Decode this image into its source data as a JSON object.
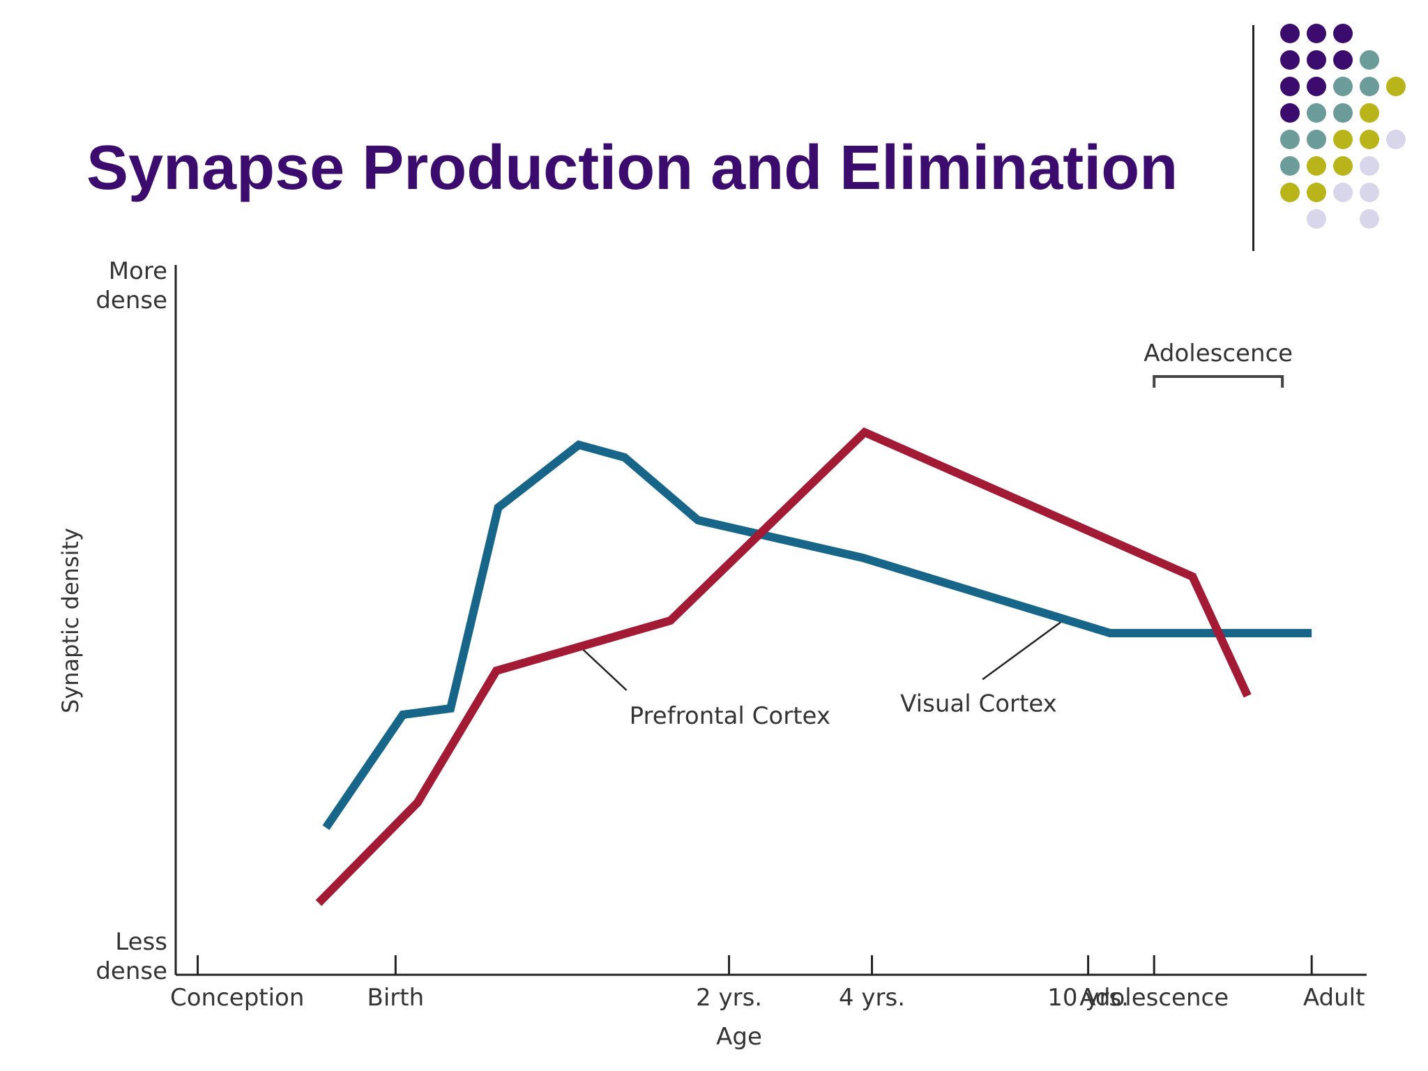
{
  "slide": {
    "title": "Synapse Production and Elimination"
  },
  "decoration": {
    "dot_colors": {
      "purple": "#3b0b6e",
      "teal": "#6b9c9a",
      "olive": "#b8b419",
      "lavender": "#d8d6ea"
    }
  },
  "chart_data": {
    "type": "line",
    "xlabel": "Age",
    "ylabel": "Synaptic density",
    "y_extremes": {
      "top": [
        "More",
        "dense"
      ],
      "bottom": [
        "Less",
        "dense"
      ]
    },
    "x_ticks": [
      {
        "label": "Conception",
        "x": 0.12
      },
      {
        "label": "Birth",
        "x": 1.2
      },
      {
        "label": "2 yrs.",
        "x": 3.02
      },
      {
        "label": "4 yrs.",
        "x": 3.8
      },
      {
        "label": "10 yrs.",
        "x": 4.98
      },
      {
        "label": "Adolescence",
        "x": 5.34
      },
      {
        "label": "Adult",
        "x": 6.2
      }
    ],
    "xlim": [
      0,
      6.5
    ],
    "ylim": [
      0,
      100
    ],
    "series": [
      {
        "name": "Visual Cortex",
        "color": "#17668a",
        "points": [
          [
            0.82,
            17
          ],
          [
            1.24,
            35
          ],
          [
            1.5,
            36
          ],
          [
            1.76,
            68
          ],
          [
            2.2,
            78
          ],
          [
            2.45,
            76
          ],
          [
            2.85,
            66
          ],
          [
            3.75,
            60
          ],
          [
            5.1,
            48
          ],
          [
            6.2,
            48
          ]
        ]
      },
      {
        "name": "Prefrontal Cortex",
        "color": "#a31a35",
        "points": [
          [
            0.78,
            5
          ],
          [
            1.32,
            21
          ],
          [
            1.75,
            42
          ],
          [
            2.7,
            50
          ],
          [
            3.76,
            80
          ],
          [
            5.55,
            57
          ],
          [
            5.85,
            38
          ]
        ]
      }
    ],
    "annotations": [
      {
        "text": "Prefrontal Cortex",
        "series": "Prefrontal Cortex"
      },
      {
        "text": "Visual Cortex",
        "series": "Visual Cortex"
      },
      {
        "text": "Adolescence",
        "type": "bracket",
        "x_range": [
          5.34,
          6.04
        ]
      }
    ]
  }
}
